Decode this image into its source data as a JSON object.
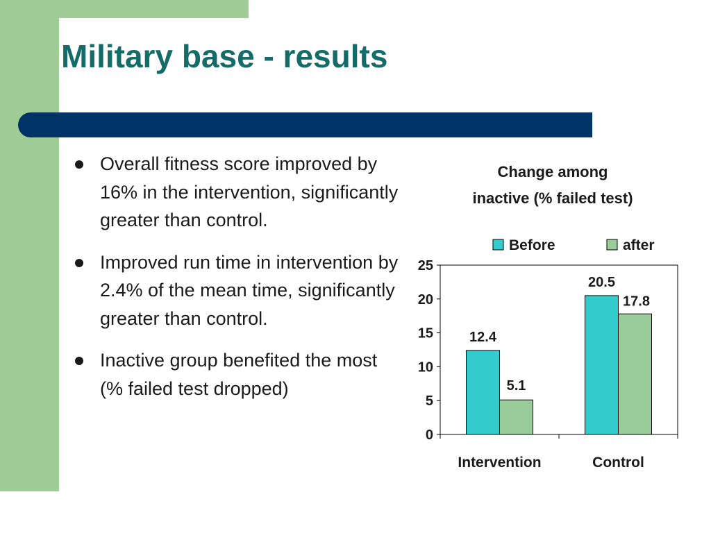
{
  "slide": {
    "title": "Military base - results",
    "bullets": [
      "Overall fitness score improved by 16% in the intervention, significantly greater than control.",
      "Improved run time in intervention by 2.4% of the mean time, significantly greater than control.",
      "Inactive group benefited the most (% failed test dropped)"
    ]
  },
  "colors": {
    "title": "#146b67",
    "accent_bar": "#003366",
    "side_strip": "#9fcd95",
    "series_before": "#33cccc",
    "series_after": "#99cc99"
  },
  "chart_data": {
    "type": "bar",
    "title_lines": [
      "Change among",
      "inactive (% failed  test)"
    ],
    "categories": [
      "Intervention",
      "Control"
    ],
    "series": [
      {
        "name": "Before",
        "values": [
          12.4,
          20.5
        ]
      },
      {
        "name": "after",
        "values": [
          5.1,
          17.8
        ]
      }
    ],
    "data_labels": [
      [
        "12.4",
        "20.5"
      ],
      [
        "5.1",
        "17.8"
      ]
    ],
    "yticks": [
      "0",
      "5",
      "10",
      "15",
      "20",
      "25"
    ],
    "ylim": [
      0,
      25
    ],
    "grid": false,
    "legend_position": "top"
  }
}
